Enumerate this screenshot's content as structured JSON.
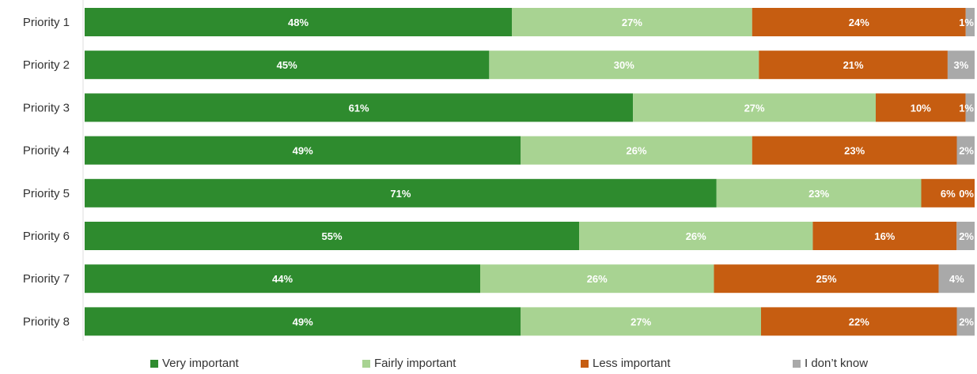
{
  "chart_data": {
    "type": "bar",
    "orientation": "horizontal",
    "stacked": true,
    "categories": [
      "Priority 1",
      "Priority 2",
      "Priority 3",
      "Priority 4",
      "Priority 5",
      "Priority 6",
      "Priority 7",
      "Priority 8"
    ],
    "series": [
      {
        "name": "Very important",
        "color": "#2e8b2e",
        "values": [
          48,
          45,
          61,
          49,
          71,
          55,
          44,
          49
        ]
      },
      {
        "name": "Fairly important",
        "color": "#a8d392",
        "values": [
          27,
          30,
          27,
          26,
          23,
          26,
          26,
          27
        ]
      },
      {
        "name": "Less important",
        "color": "#c65d11",
        "values": [
          24,
          21,
          10,
          23,
          6,
          16,
          25,
          22
        ]
      },
      {
        "name": "I don’t know",
        "color": "#a9a9a9",
        "values": [
          1,
          3,
          1,
          2,
          0,
          2,
          4,
          2
        ]
      }
    ],
    "labels": [
      [
        "48%",
        "27%",
        "24%",
        "1%"
      ],
      [
        "45%",
        "30%",
        "21%",
        "3%"
      ],
      [
        "61%",
        "27%",
        "10%",
        "1%"
      ],
      [
        "49%",
        "26%",
        "23%",
        "2%"
      ],
      [
        "71%",
        "23%",
        "6%",
        "0%"
      ],
      [
        "55%",
        "26%",
        "16%",
        "2%"
      ],
      [
        "44%",
        "26%",
        "25%",
        "4%"
      ],
      [
        "49%",
        "27%",
        "22%",
        "2%"
      ]
    ],
    "title": "",
    "xlabel": "",
    "ylabel": "",
    "legend_position": "bottom",
    "grid": false
  }
}
